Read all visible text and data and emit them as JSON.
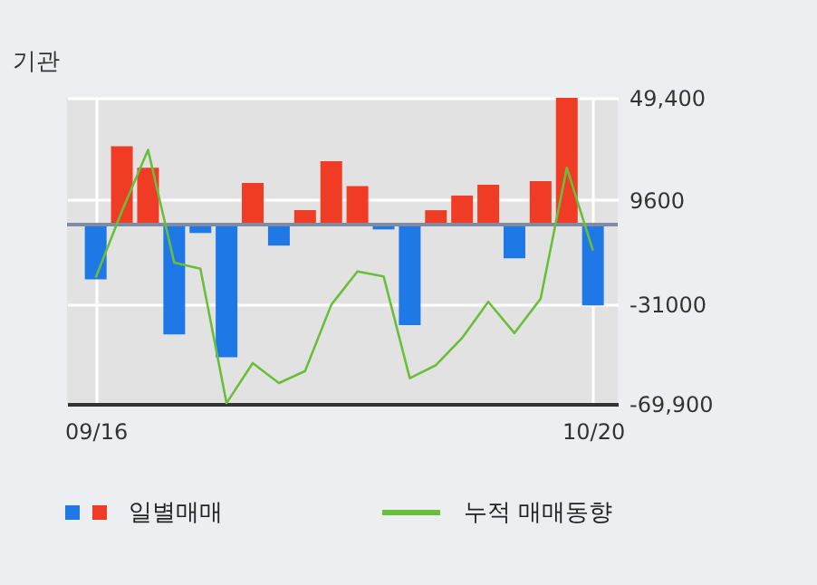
{
  "chart_data": {
    "type": "bar",
    "title": "기관",
    "categories": [
      "09/16",
      null,
      null,
      null,
      null,
      null,
      null,
      null,
      null,
      null,
      null,
      null,
      null,
      null,
      null,
      null,
      null,
      null,
      null,
      "10/20"
    ],
    "series": [
      {
        "name": "일별매매",
        "values": [
          -21400,
          30500,
          22100,
          -42800,
          -3300,
          -51700,
          16200,
          -8200,
          5600,
          24700,
          15000,
          -1900,
          -39200,
          5600,
          11300,
          15500,
          -13200,
          16900,
          49400,
          -31500
        ],
        "colors": [
          "#1e78e6",
          "#f03c24",
          "#f03c24",
          "#1e78e6",
          "#1e78e6",
          "#1e78e6",
          "#f03c24",
          "#1e78e6",
          "#f03c24",
          "#f03c24",
          "#f03c24",
          "#1e78e6",
          "#1e78e6",
          "#f03c24",
          "#f03c24",
          "#f03c24",
          "#1e78e6",
          "#f03c24",
          "#f03c24",
          "#1e78e6"
        ]
      },
      {
        "name": "누적 매매동향",
        "type": "line",
        "color": "#6abf3a",
        "values": [
          -20700,
          5200,
          29100,
          -14800,
          -17200,
          -69600,
          -54000,
          -61800,
          -57100,
          -31300,
          -18300,
          -20200,
          -59900,
          -54800,
          -44200,
          -30100,
          -42300,
          -28900,
          22100,
          -10100
        ]
      }
    ],
    "ylim": [
      -69900,
      49400
    ],
    "yticks": [
      {
        "value": 49400,
        "label": "49,400"
      },
      9600,
      -31000,
      {
        "value": -69900,
        "label": "-69,900"
      }
    ],
    "ref_lines": [
      {
        "axis": "y",
        "value": 0,
        "color": "#7f8ba0"
      }
    ],
    "grid": true,
    "legend": "bottom"
  }
}
